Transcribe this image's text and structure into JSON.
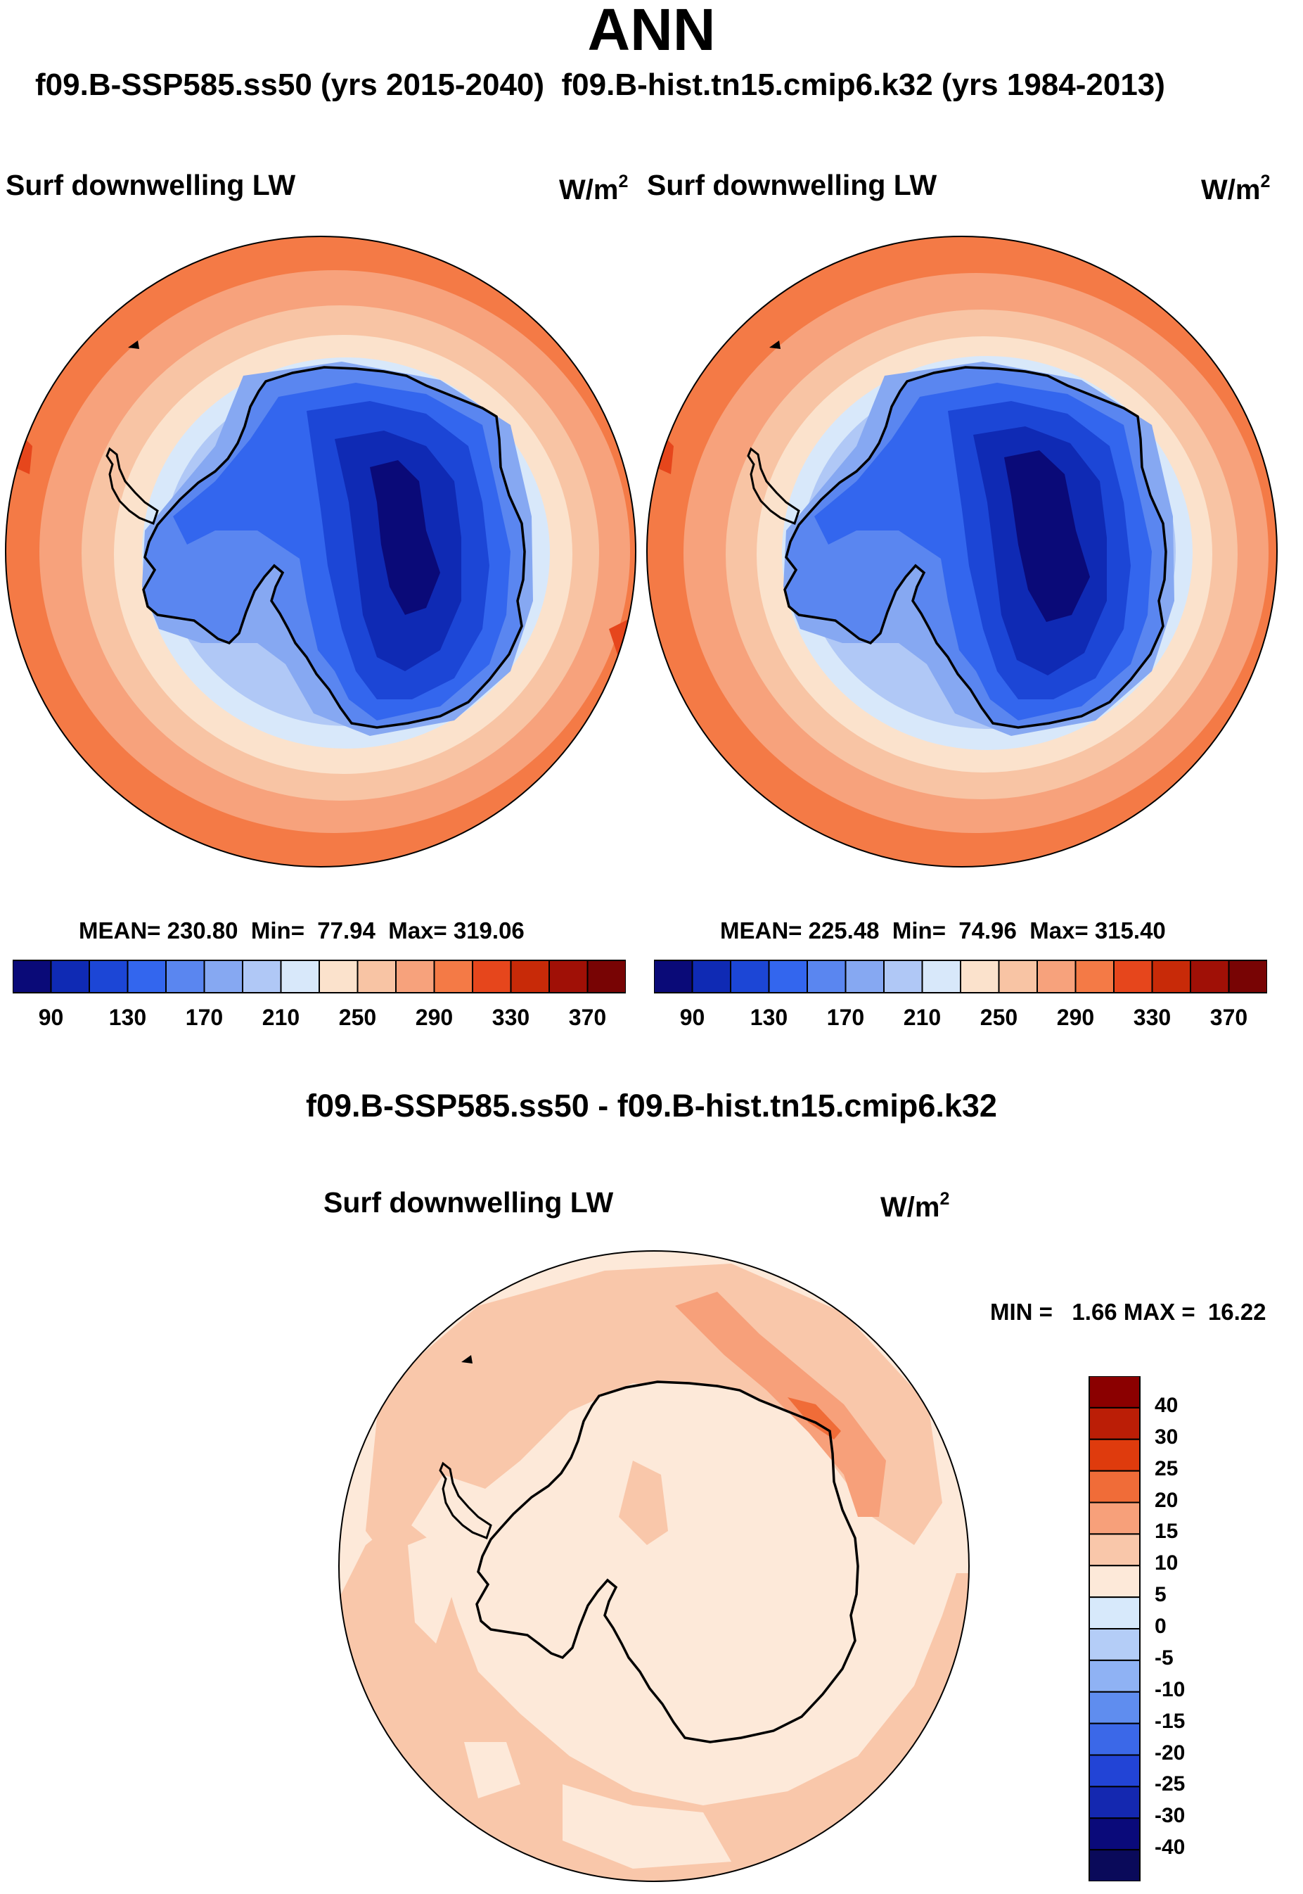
{
  "page": {
    "main_title": "ANN",
    "case_test": "f09.B-SSP585.ss50 (yrs 2015-2040)",
    "case_control": "f09.B-hist.tn15.cmip6.k32 (yrs 1984-2013)",
    "diff_title": "f09.B-SSP585.ss50 - f09.B-hist.tn15.cmip6.k32"
  },
  "panels": [
    {
      "id": "test",
      "variable": "Surf downwelling LW",
      "units_base": "W/m",
      "units_exp": "2",
      "stats_text": "MEAN= 230.80  Min=  77.94  Max= 319.06",
      "mean": 230.8,
      "min": 77.94,
      "max": 319.06,
      "cbar_ticks": [
        "90",
        "130",
        "170",
        "210",
        "250",
        "290",
        "330",
        "370"
      ]
    },
    {
      "id": "control",
      "variable": "Surf downwelling LW",
      "units_base": "W/m",
      "units_exp": "2",
      "stats_text": "MEAN= 225.48  Min=  74.96  Max= 315.40",
      "mean": 225.48,
      "min": 74.96,
      "max": 315.4,
      "cbar_ticks": [
        "90",
        "130",
        "170",
        "210",
        "250",
        "290",
        "330",
        "370"
      ]
    },
    {
      "id": "difference",
      "variable": "Surf downwelling LW",
      "units_base": "W/m",
      "units_exp": "2",
      "stats_text": "MIN =   1.66 MAX =  16.22",
      "min": 1.66,
      "max": 16.22,
      "cbar_ticks": [
        "40",
        "30",
        "25",
        "20",
        "15",
        "10",
        "5",
        "0",
        "-5",
        "-10",
        "-15",
        "-20",
        "-25",
        "-30",
        "-40"
      ]
    }
  ],
  "colors": {
    "abs_scale": [
      "#0a0a78",
      "#0f2ab4",
      "#1c46d6",
      "#3366ee",
      "#5a86f0",
      "#86a8f2",
      "#b0c8f6",
      "#d8e8fa",
      "#fbe2cc",
      "#f8c4a4",
      "#f7a27c",
      "#f47a46",
      "#e6461c",
      "#c82a08",
      "#a01006",
      "#780404"
    ],
    "diff_scale": [
      "#8b0000",
      "#bb1e06",
      "#df3b0d",
      "#f06c38",
      "#f7a07a",
      "#f9c7aa",
      "#fde9d9",
      "#d7e9fb",
      "#b4cdf7",
      "#8fb2f4",
      "#5f8def",
      "#3b68e8",
      "#2244d6",
      "#1428b0",
      "#0a0a7a"
    ]
  }
}
